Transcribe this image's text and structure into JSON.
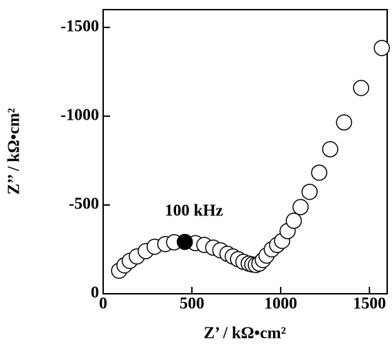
{
  "chart_data": {
    "type": "scatter",
    "xlabel": "Z’ / kΩ•cm²",
    "ylabel": "Z’’ / kΩ•cm²",
    "annotation": "100 kHz",
    "xlim": [
      0,
      1600
    ],
    "xticks": [
      0,
      500,
      1000,
      1500
    ],
    "ylim": [
      0,
      -1600
    ],
    "yticks": [
      0,
      -500,
      -1000,
      -1500
    ],
    "series": [
      {
        "color": "#ffffff",
        "x": [
          90,
          120,
          150,
          190,
          240,
          290,
          350,
          400,
          520,
          570,
          620,
          660,
          700,
          730,
          760,
          790,
          820,
          840,
          860,
          880,
          900,
          920,
          950,
          980,
          1008,
          1039,
          1074,
          1112,
          1163,
          1217,
          1279,
          1357,
          1453,
          1570
        ],
        "values": [
          -130,
          -160,
          -185,
          -210,
          -240,
          -265,
          -280,
          -290,
          -285,
          -275,
          -260,
          -245,
          -225,
          -210,
          -195,
          -180,
          -170,
          -165,
          -162,
          -170,
          -190,
          -215,
          -250,
          -275,
          -298,
          -353,
          -411,
          -488,
          -574,
          -682,
          -814,
          -965,
          -1159,
          -1384
        ]
      },
      {
        "color": "#000000",
        "x": [
          460
        ],
        "values": [
          -292
        ]
      }
    ]
  }
}
